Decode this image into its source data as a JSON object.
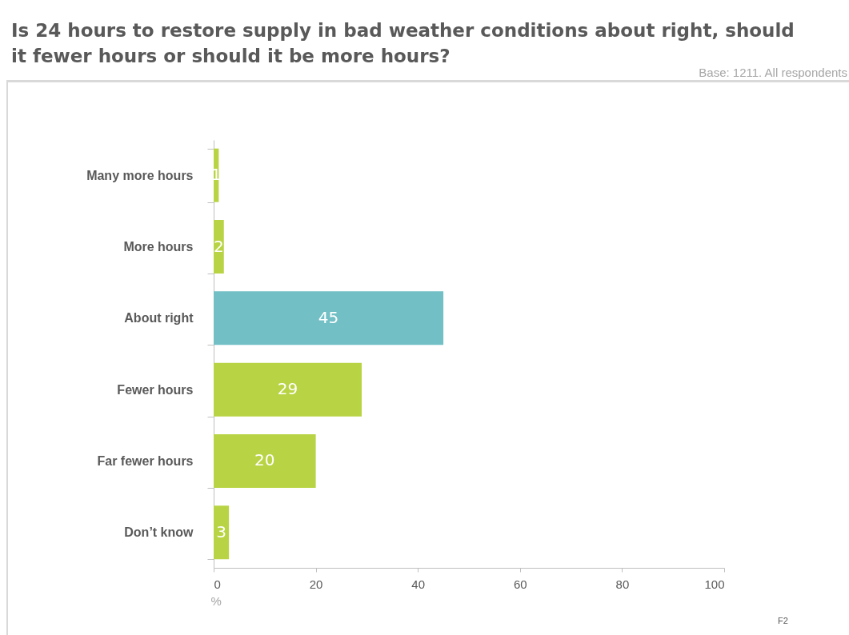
{
  "chart_data": {
    "type": "bar",
    "orientation": "horizontal",
    "title": "Is 24 hours to restore supply in bad weather conditions about right, should it fewer hours or should it be more hours?",
    "categories": [
      "Many more hours",
      "More hours",
      "About right",
      "Fewer hours",
      "Far fewer hours",
      "Don’t know"
    ],
    "values": [
      1,
      2,
      45,
      29,
      20,
      3
    ],
    "colors": [
      "#b8d444",
      "#b8d444",
      "#72bfc5",
      "#b8d444",
      "#b8d444",
      "#b8d444"
    ],
    "xlim": [
      0,
      100
    ],
    "xticks": [
      0,
      20,
      40,
      60,
      80,
      100
    ],
    "xlabel": "%",
    "data_labels": true,
    "annotations": [
      "Base: 1211. All respondents",
      "F2"
    ]
  }
}
